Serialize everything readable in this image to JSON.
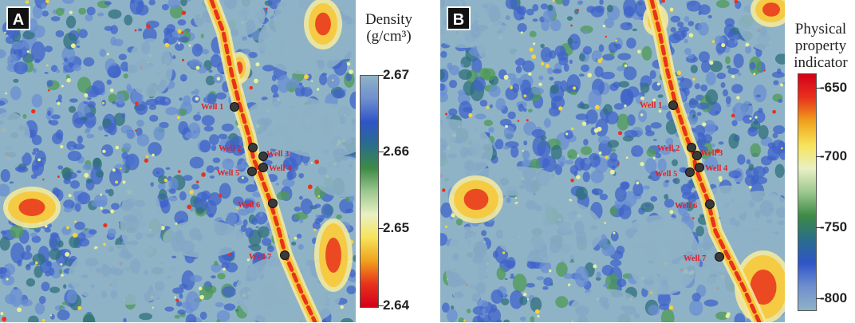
{
  "panels": [
    {
      "label": "A",
      "legend_title_lines": [
        "Density",
        "(g/cm³)"
      ],
      "colorbar_ticks": [
        "2.67",
        "2.66",
        "2.65",
        "2.64"
      ],
      "colorbar_stops": [
        "#8fb3c6",
        "#6f8fcf",
        "#2f55c8",
        "#2a6d8a",
        "#3e8a45",
        "#9cc78f",
        "#e9f0c4",
        "#f6e45a",
        "#f0a21d",
        "#e8321c",
        "#d4001a"
      ],
      "wells": [
        "Well 1",
        "Well 2",
        "Well 3",
        "Well 4",
        "Well 5",
        "Well 6",
        "Well 7"
      ]
    },
    {
      "label": "B",
      "legend_title_lines": [
        "Physical",
        "property",
        "indicator"
      ],
      "colorbar_ticks": [
        "-650",
        "-700",
        "-750",
        "-800"
      ],
      "colorbar_stops": [
        "#d4001a",
        "#e8321c",
        "#f0a21d",
        "#f6e45a",
        "#e9f0c4",
        "#9cc78f",
        "#3e8a45",
        "#2a6d8a",
        "#2f55c8",
        "#6f8fcf",
        "#8fb3c6"
      ],
      "wells": [
        "Well 1",
        "Well 2",
        "Well 3",
        "Well 4",
        "Well 5",
        "Well 6",
        "Well 7"
      ]
    }
  ]
}
